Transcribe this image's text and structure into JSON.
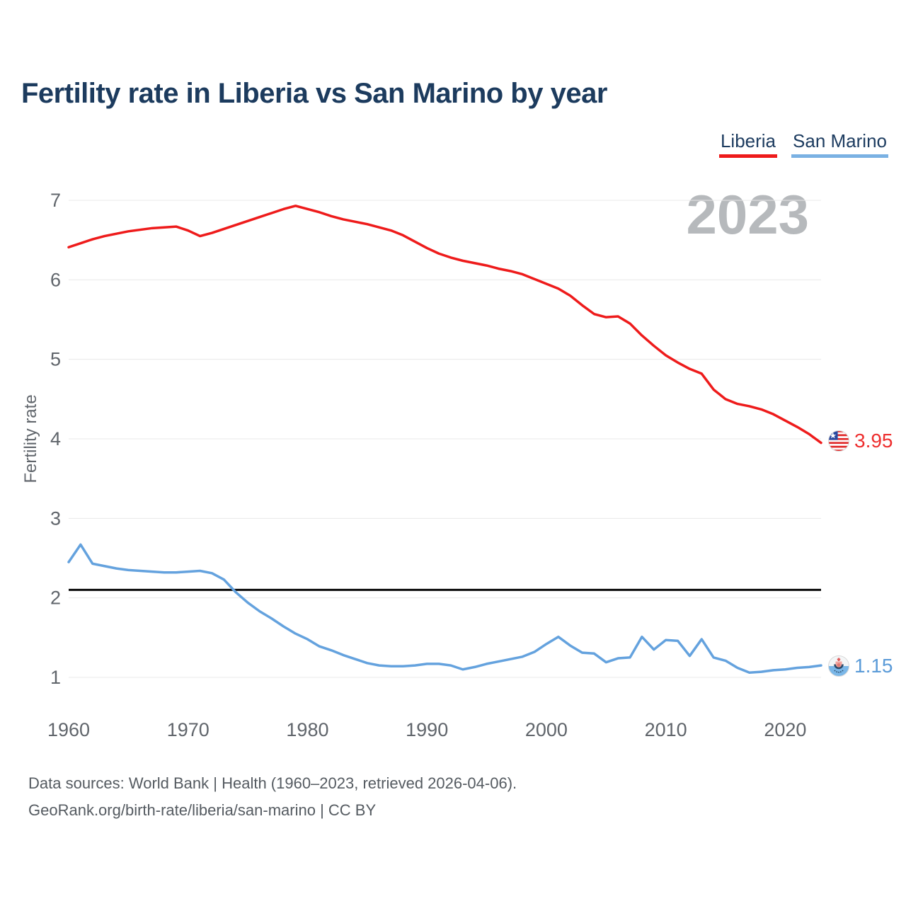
{
  "header": {
    "title": "Fertility rate in Liberia vs San Marino by year"
  },
  "legend": {
    "items": [
      {
        "label": "Liberia",
        "color": "#ee1b1b"
      },
      {
        "label": "San Marino",
        "color": "#7ab1e3"
      }
    ]
  },
  "watermark": "2023",
  "end_labels": {
    "liberia": {
      "value": "3.95",
      "color": "#ee2e2e",
      "flag": "liberia-flag"
    },
    "san_marino": {
      "value": "1.15",
      "color": "#5b9bd8",
      "flag": "san-marino-flag"
    }
  },
  "footer": {
    "line1": "Data sources: World Bank | Health (1960–2023, retrieved 2026-04-06).",
    "line2": "GeoRank.org/birth-rate/liberia/san-marino | CC BY"
  },
  "chart_data": {
    "type": "line",
    "title": "Fertility rate in Liberia vs San Marino by year",
    "xlabel": "",
    "ylabel": "Fertility rate",
    "xlim": [
      1960,
      2023
    ],
    "ylim": [
      1,
      7
    ],
    "x_ticks": [
      1960,
      1970,
      1980,
      1990,
      2000,
      2010,
      2020
    ],
    "y_ticks": [
      1,
      2,
      3,
      4,
      5,
      6,
      7
    ],
    "grid": "horizontal",
    "grid_color": "#e8e8e8",
    "axis_text_color": "#60656b",
    "legend_position": "top-right",
    "watermark_year": "2023",
    "reference_line": {
      "value": 2.1,
      "color": "#0a0a0a"
    },
    "years": [
      1960,
      1961,
      1962,
      1963,
      1964,
      1965,
      1966,
      1967,
      1968,
      1969,
      1970,
      1971,
      1972,
      1973,
      1974,
      1975,
      1976,
      1977,
      1978,
      1979,
      1980,
      1981,
      1982,
      1983,
      1984,
      1985,
      1986,
      1987,
      1988,
      1989,
      1990,
      1991,
      1992,
      1993,
      1994,
      1995,
      1996,
      1997,
      1998,
      1999,
      2000,
      2001,
      2002,
      2003,
      2004,
      2005,
      2006,
      2007,
      2008,
      2009,
      2010,
      2011,
      2012,
      2013,
      2014,
      2015,
      2016,
      2017,
      2018,
      2019,
      2020,
      2021,
      2022,
      2023
    ],
    "series": [
      {
        "name": "Liberia",
        "color": "#ee1b1b",
        "end_label": "3.95",
        "values": [
          6.41,
          6.46,
          6.51,
          6.55,
          6.58,
          6.61,
          6.63,
          6.65,
          6.66,
          6.67,
          6.62,
          6.55,
          6.59,
          6.64,
          6.69,
          6.74,
          6.79,
          6.84,
          6.89,
          6.93,
          6.89,
          6.85,
          6.8,
          6.76,
          6.73,
          6.7,
          6.66,
          6.62,
          6.56,
          6.48,
          6.4,
          6.33,
          6.28,
          6.24,
          6.21,
          6.18,
          6.14,
          6.11,
          6.07,
          6.01,
          5.95,
          5.89,
          5.8,
          5.68,
          5.57,
          5.53,
          5.54,
          5.45,
          5.3,
          5.17,
          5.05,
          4.96,
          4.88,
          4.82,
          4.62,
          4.5,
          4.44,
          4.41,
          4.37,
          4.31,
          4.23,
          4.15,
          4.06,
          3.95
        ]
      },
      {
        "name": "San Marino",
        "color": "#64a2de",
        "end_label": "1.15",
        "values": [
          2.45,
          2.67,
          2.43,
          2.4,
          2.37,
          2.35,
          2.34,
          2.33,
          2.32,
          2.32,
          2.33,
          2.34,
          2.31,
          2.23,
          2.07,
          1.94,
          1.83,
          1.74,
          1.64,
          1.55,
          1.48,
          1.39,
          1.34,
          1.28,
          1.23,
          1.18,
          1.15,
          1.14,
          1.14,
          1.15,
          1.17,
          1.17,
          1.15,
          1.1,
          1.13,
          1.17,
          1.2,
          1.23,
          1.26,
          1.32,
          1.42,
          1.51,
          1.4,
          1.31,
          1.3,
          1.19,
          1.24,
          1.25,
          1.51,
          1.35,
          1.47,
          1.46,
          1.27,
          1.48,
          1.25,
          1.21,
          1.12,
          1.06,
          1.07,
          1.09,
          1.1,
          1.12,
          1.13,
          1.15
        ]
      }
    ]
  }
}
